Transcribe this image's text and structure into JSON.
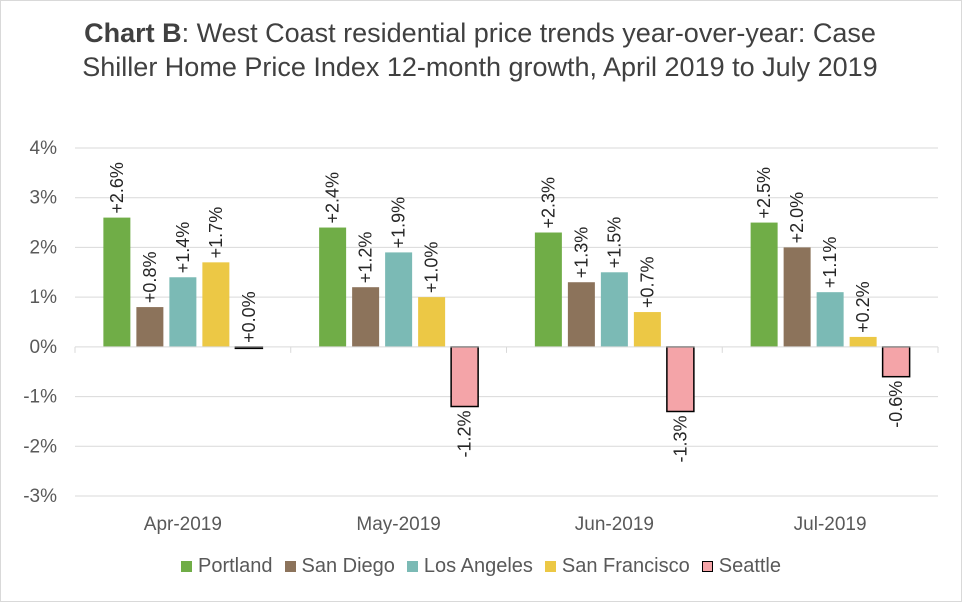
{
  "title": {
    "bold": "Chart B",
    "rest": ": West Coast residential price trends year-over-year: Case Shiller Home Price Index 12-month growth, April 2019 to July 2019"
  },
  "chart_data": {
    "type": "bar",
    "title": "Chart B: West Coast residential price trends year-over-year: Case Shiller Home Price Index 12-month growth, April 2019 to July 2019",
    "categories": [
      "Apr-2019",
      "May-2019",
      "Jun-2019",
      "Jul-2019"
    ],
    "series": [
      {
        "name": "Portland",
        "color": "#70ad47",
        "values": [
          2.6,
          2.4,
          2.3,
          2.5
        ],
        "labels": [
          "+2.6%",
          "+2.4%",
          "+2.3%",
          "+2.5%"
        ]
      },
      {
        "name": "San Diego",
        "color": "#8c735b",
        "values": [
          0.8,
          1.2,
          1.3,
          2.0
        ],
        "labels": [
          "+0.8%",
          "+1.2%",
          "+1.3%",
          "+2.0%"
        ]
      },
      {
        "name": "Los Angeles",
        "color": "#7bbab5",
        "values": [
          1.4,
          1.9,
          1.5,
          1.1
        ],
        "labels": [
          "+1.4%",
          "+1.9%",
          "+1.5%",
          "+1.1%"
        ]
      },
      {
        "name": "San Francisco",
        "color": "#ecc845",
        "values": [
          1.7,
          1.0,
          0.7,
          0.2
        ],
        "labels": [
          "+1.7%",
          "+1.0%",
          "+0.7%",
          "+0.2%"
        ]
      },
      {
        "name": "Seattle",
        "color": "#f4a4a8",
        "outline": "#000000",
        "values": [
          0.0,
          -1.2,
          -1.3,
          -0.6
        ],
        "labels": [
          "+0.0%",
          "-1.2%",
          "-1.3%",
          "-0.6%"
        ]
      }
    ],
    "ylim": [
      -3,
      4
    ],
    "yticks": [
      4,
      3,
      2,
      1,
      0,
      -1,
      -2,
      -3
    ],
    "ytick_labels": [
      "4%",
      "3%",
      "2%",
      "1%",
      "0%",
      "-1%",
      "-2%",
      "-3%"
    ],
    "grid": true,
    "legend_position": "bottom"
  }
}
